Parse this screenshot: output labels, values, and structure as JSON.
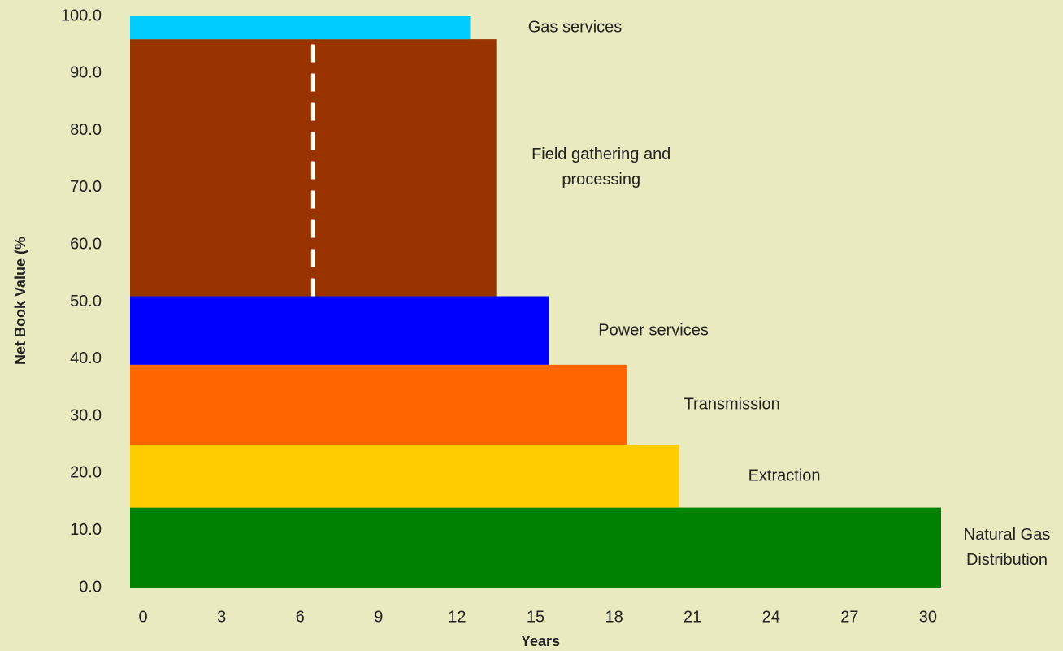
{
  "chart_data": {
    "type": "bar",
    "orientation": "horizontal-stacked",
    "x_label": "Years",
    "y_label": "Net Book Value (%",
    "xlim": [
      -0.5,
      30.5
    ],
    "xticks": [
      0,
      3,
      6,
      9,
      12,
      15,
      18,
      21,
      24,
      27,
      30
    ],
    "ylim": [
      0,
      100
    ],
    "yticks": [
      {
        "value": 0,
        "label": "0.0"
      },
      {
        "value": 10,
        "label": "10.0"
      },
      {
        "value": 20,
        "label": "20.0"
      },
      {
        "value": 30,
        "label": "30.0"
      },
      {
        "value": 40,
        "label": "40.0"
      },
      {
        "value": 50,
        "label": "50.0"
      },
      {
        "value": 60,
        "label": "60.0"
      },
      {
        "value": 70,
        "label": "70.0"
      },
      {
        "value": 80,
        "label": "80.0"
      },
      {
        "value": 90,
        "label": "90.0"
      },
      {
        "value": 100,
        "label": "100.0"
      }
    ],
    "series": [
      {
        "name": "Natural Gas Distribution",
        "color": "#008000",
        "years": 30.5,
        "share": 14
      },
      {
        "name": "Extraction",
        "color": "#ffcc00",
        "years": 20.5,
        "share": 11
      },
      {
        "name": "Transmission",
        "color": "#ff6600",
        "years": 18.5,
        "share": 14
      },
      {
        "name": "Power services",
        "color": "#0000ff",
        "years": 15.5,
        "share": 12
      },
      {
        "name": "Field gathering and processing",
        "color": "#993300",
        "years": 13.5,
        "share": 45
      },
      {
        "name": "Gas services",
        "color": "#00ccff",
        "years": 12.5,
        "share": 4
      }
    ],
    "reference_x": 6.5,
    "reference_color": "#ffffff"
  }
}
